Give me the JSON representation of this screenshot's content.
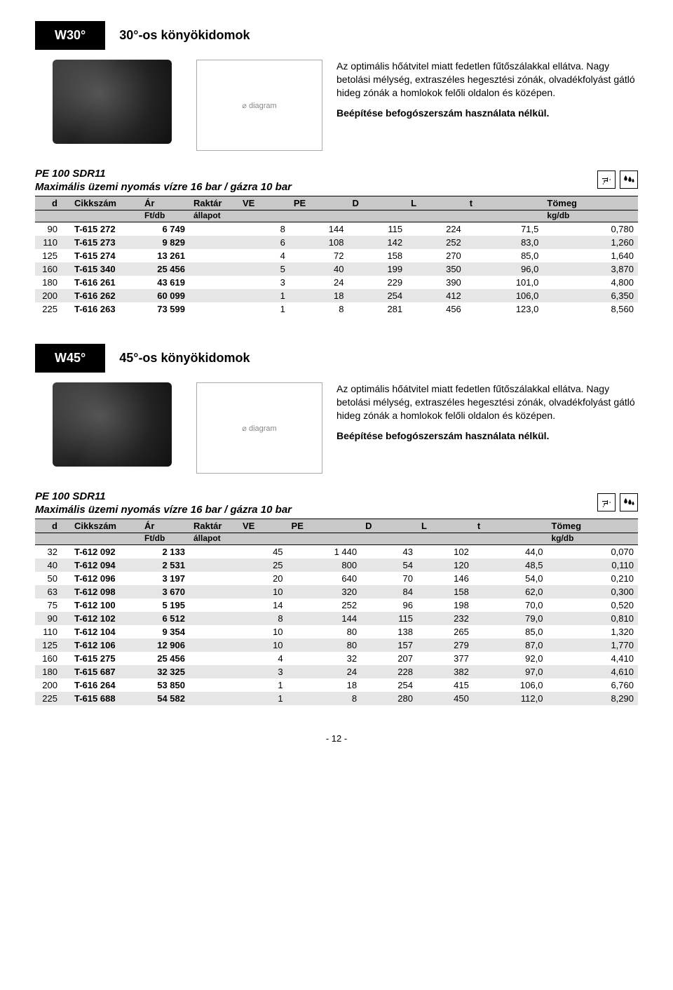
{
  "page_number": "- 12 -",
  "sections": [
    {
      "code": "W30°",
      "title": "30°-os könyökidomok",
      "desc": "Az optimális hőátvitel miatt fedetlen fűtőszálakkal ellátva. Nagy betolási mélység, extraszéles hegesztési zónák, olvadékfolyást gátló hideg zónák a homlokok felőli oldalon és középen.",
      "desc_bold": "Beépítése befogószerszám használata nélkül.",
      "spec_line1": "PE 100 SDR11",
      "spec_line2": "Maximális üzemi nyomás vízre 16 bar / gázra 10 bar",
      "icons": [
        "tap-icon",
        "drops-icon"
      ],
      "columns": [
        "d",
        "Cikkszám",
        "Ár",
        "Raktár",
        "VE",
        "PE",
        "D",
        "L",
        "t",
        "Tömeg"
      ],
      "subcolumns": [
        "",
        "",
        "Ft/db",
        "állapot",
        "",
        "",
        "",
        "",
        "",
        "kg/db"
      ],
      "rows": [
        [
          "90",
          "T-615 272",
          "6 749",
          "",
          "8",
          "144",
          "115",
          "224",
          "71,5",
          "0,780"
        ],
        [
          "110",
          "T-615 273",
          "9 829",
          "",
          "6",
          "108",
          "142",
          "252",
          "83,0",
          "1,260"
        ],
        [
          "125",
          "T-615 274",
          "13 261",
          "",
          "4",
          "72",
          "158",
          "270",
          "85,0",
          "1,640"
        ],
        [
          "160",
          "T-615 340",
          "25 456",
          "",
          "5",
          "40",
          "199",
          "350",
          "96,0",
          "3,870"
        ],
        [
          "180",
          "T-616 261",
          "43 619",
          "",
          "3",
          "24",
          "229",
          "390",
          "101,0",
          "4,800"
        ],
        [
          "200",
          "T-616 262",
          "60 099",
          "",
          "1",
          "18",
          "254",
          "412",
          "106,0",
          "6,350"
        ],
        [
          "225",
          "T-616 263",
          "73 599",
          "",
          "1",
          "8",
          "281",
          "456",
          "123,0",
          "8,560"
        ]
      ]
    },
    {
      "code": "W45°",
      "title": "45°-os könyökidomok",
      "desc": "Az optimális hőátvitel miatt fedetlen fűtőszálakkal ellátva. Nagy betolási mélység, extraszéles hegesztési zónák, olvadékfolyást gátló hideg zónák a homlokok felőli oldalon és középen.",
      "desc_bold": "Beépítése befogószerszám használata nélkül.",
      "spec_line1": "PE 100 SDR11",
      "spec_line2": "Maximális üzemi nyomás vízre 16 bar / gázra 10 bar",
      "icons": [
        "tap-icon",
        "drops-icon"
      ],
      "columns": [
        "d",
        "Cikkszám",
        "Ár",
        "Raktár",
        "VE",
        "PE",
        "D",
        "L",
        "t",
        "Tömeg"
      ],
      "subcolumns": [
        "",
        "",
        "Ft/db",
        "állapot",
        "",
        "",
        "",
        "",
        "",
        "kg/db"
      ],
      "rows": [
        [
          "32",
          "T-612 092",
          "2 133",
          "",
          "45",
          "1 440",
          "43",
          "102",
          "44,0",
          "0,070"
        ],
        [
          "40",
          "T-612 094",
          "2 531",
          "",
          "25",
          "800",
          "54",
          "120",
          "48,5",
          "0,110"
        ],
        [
          "50",
          "T-612 096",
          "3 197",
          "",
          "20",
          "640",
          "70",
          "146",
          "54,0",
          "0,210"
        ],
        [
          "63",
          "T-612 098",
          "3 670",
          "",
          "10",
          "320",
          "84",
          "158",
          "62,0",
          "0,300"
        ],
        [
          "75",
          "T-612 100",
          "5 195",
          "",
          "14",
          "252",
          "96",
          "198",
          "70,0",
          "0,520"
        ],
        [
          "90",
          "T-612 102",
          "6 512",
          "",
          "8",
          "144",
          "115",
          "232",
          "79,0",
          "0,810"
        ],
        [
          "110",
          "T-612 104",
          "9 354",
          "",
          "10",
          "80",
          "138",
          "265",
          "85,0",
          "1,320"
        ],
        [
          "125",
          "T-612 106",
          "12 906",
          "",
          "10",
          "80",
          "157",
          "279",
          "87,0",
          "1,770"
        ],
        [
          "160",
          "T-615 275",
          "25 456",
          "",
          "4",
          "32",
          "207",
          "377",
          "92,0",
          "4,410"
        ],
        [
          "180",
          "T-615 687",
          "32 325",
          "",
          "3",
          "24",
          "228",
          "382",
          "97,0",
          "4,610"
        ],
        [
          "200",
          "T-616 264",
          "53 850",
          "",
          "1",
          "18",
          "254",
          "415",
          "106,0",
          "6,760"
        ],
        [
          "225",
          "T-615 688",
          "54 582",
          "",
          "1",
          "8",
          "280",
          "450",
          "112,0",
          "8,290"
        ]
      ]
    }
  ]
}
